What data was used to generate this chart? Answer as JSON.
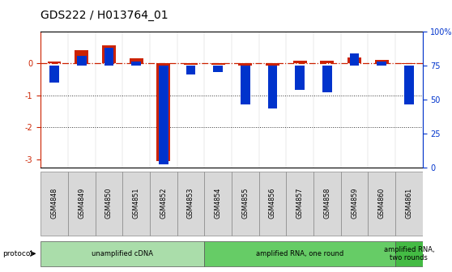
{
  "title": "GDS222 / H013764_01",
  "samples": [
    "GSM4848",
    "GSM4849",
    "GSM4850",
    "GSM4851",
    "GSM4852",
    "GSM4853",
    "GSM4854",
    "GSM4855",
    "GSM4856",
    "GSM4857",
    "GSM4858",
    "GSM4859",
    "GSM4860",
    "GSM4861"
  ],
  "log_ratio": [
    0.05,
    0.42,
    0.55,
    0.15,
    -3.05,
    -0.05,
    -0.04,
    -0.07,
    -0.08,
    0.07,
    0.07,
    0.17,
    0.1,
    -0.02
  ],
  "percentile": [
    62,
    82,
    88,
    78,
    2,
    68,
    70,
    46,
    43,
    57,
    55,
    84,
    78,
    46
  ],
  "ylim_left": [
    -3.25,
    1.0
  ],
  "ylim_right": [
    0,
    100
  ],
  "protocol_groups": [
    {
      "label": "unamplified cDNA",
      "start": 0,
      "end": 5,
      "color": "#aaddaa"
    },
    {
      "label": "amplified RNA, one round",
      "start": 6,
      "end": 12,
      "color": "#66cc66"
    },
    {
      "label": "amplified RNA,\ntwo rounds",
      "start": 13,
      "end": 13,
      "color": "#44bb44"
    }
  ],
  "bar_color_red": "#cc2200",
  "bar_color_blue": "#0033cc",
  "hline_color": "#cc2200",
  "dotted_line_color": "#333333",
  "background_color": "#ffffff",
  "title_fontsize": 10,
  "tick_fontsize": 7,
  "label_fontsize": 7
}
